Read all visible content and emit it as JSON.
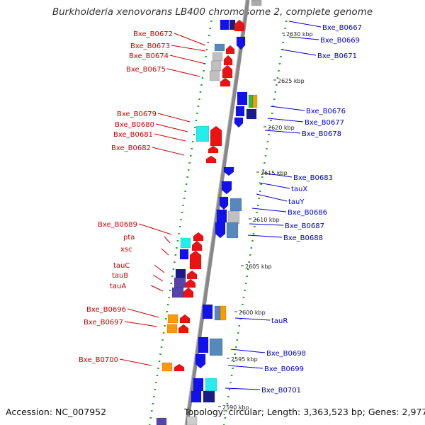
{
  "title": "Burkholderia xenovorans LB400 chromosome 2, complete genome",
  "footer": {
    "accession": "Accession: NC_007952",
    "topology": "Topology: circular; Length: 3,363,523 bp; Genes: 2,977"
  },
  "colors": {
    "left_label": "#cc0000",
    "right_label": "#0000cc",
    "ruler_dash": "#22aa22",
    "backbone": "#888888"
  },
  "scale_labels": [
    "2630 kbp",
    "2625 kbp",
    "2620 kbp",
    "2615 kbp",
    "2610 kbp",
    "2605 kbp",
    "2600 kbp",
    "2595 kbp",
    "2590 kbp"
  ],
  "left_genes": [
    "Bxe_B0672",
    "Bxe_B0673",
    "Bxe_B0674",
    "Bxe_B0675",
    "Bxe_B0679",
    "Bxe_B0680",
    "Bxe_B0681",
    "Bxe_B0682",
    "Bxe_B0689",
    "pta",
    "xsc",
    "tauC",
    "tauB",
    "tauA",
    "Bxe_B0696",
    "Bxe_B0697",
    "Bxe_B0700"
  ],
  "right_genes": [
    "Bxe_B0667",
    "Bxe_B0669",
    "Bxe_B0671",
    "Bxe_B0676",
    "Bxe_B0677",
    "Bxe_B0678",
    "Bxe_B0683",
    "tauX",
    "tauY",
    "Bxe_B0686",
    "Bxe_B0687",
    "Bxe_B0688",
    "tauR",
    "Bxe_B0698",
    "Bxe_B0699",
    "Bxe_B0701"
  ]
}
